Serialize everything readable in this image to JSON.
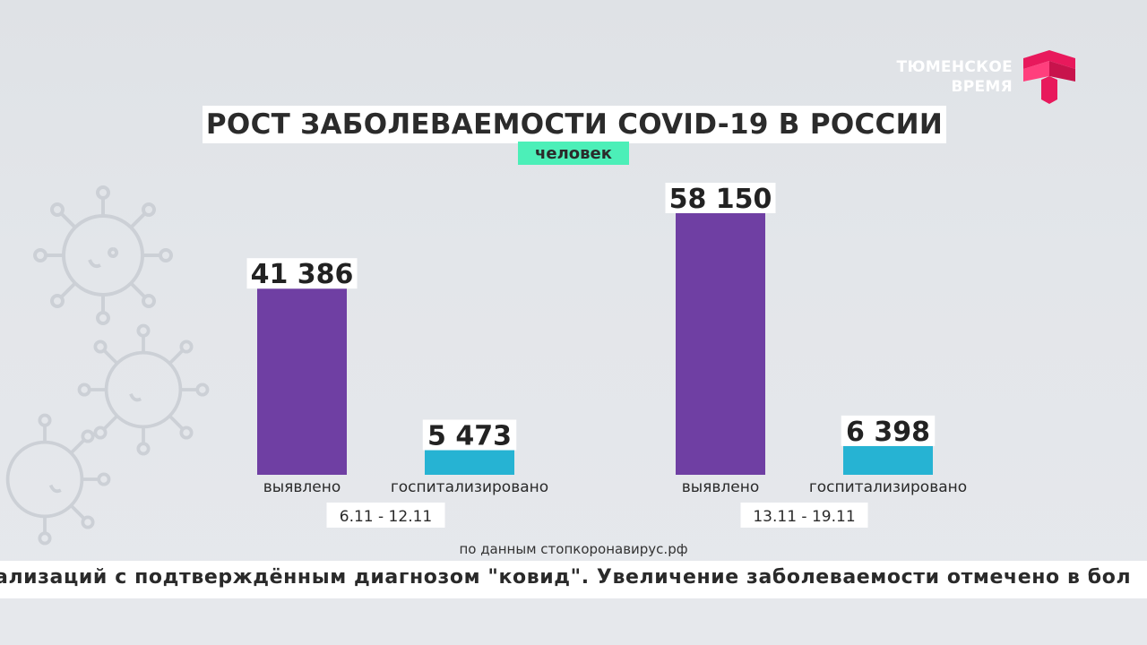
{
  "logo": {
    "line1": "ТЮМЕНСКОЕ",
    "line2": "ВРЕМЯ",
    "accent": "#e8195c"
  },
  "chart_data": {
    "type": "bar",
    "title": "РОСТ ЗАБОЛЕВАЕМОСТИ COVID-19 В РОССИИ",
    "unit": "человек",
    "groups": [
      {
        "period": "6.11 - 12.11",
        "bars": [
          {
            "label": "выявлено",
            "value": 41386,
            "display": "41 386",
            "color": "#6f3fa3"
          },
          {
            "label": "госпитализировано",
            "value": 5473,
            "display": "5 473",
            "color": "#26b3d3"
          }
        ]
      },
      {
        "period": "13.11 - 19.11",
        "bars": [
          {
            "label": "выявлено",
            "value": 58150,
            "display": "58 150",
            "color": "#6f3fa3"
          },
          {
            "label": "госпитализировано",
            "value": 6398,
            "display": "6 398",
            "color": "#26b3d3"
          }
        ]
      }
    ],
    "source": "по данным стопкоронавирус.рф"
  },
  "ticker": {
    "text": "ализаций с подтверждённым диагнозом \"ковид\". Увеличение заболеваемости отмечено в бол"
  }
}
